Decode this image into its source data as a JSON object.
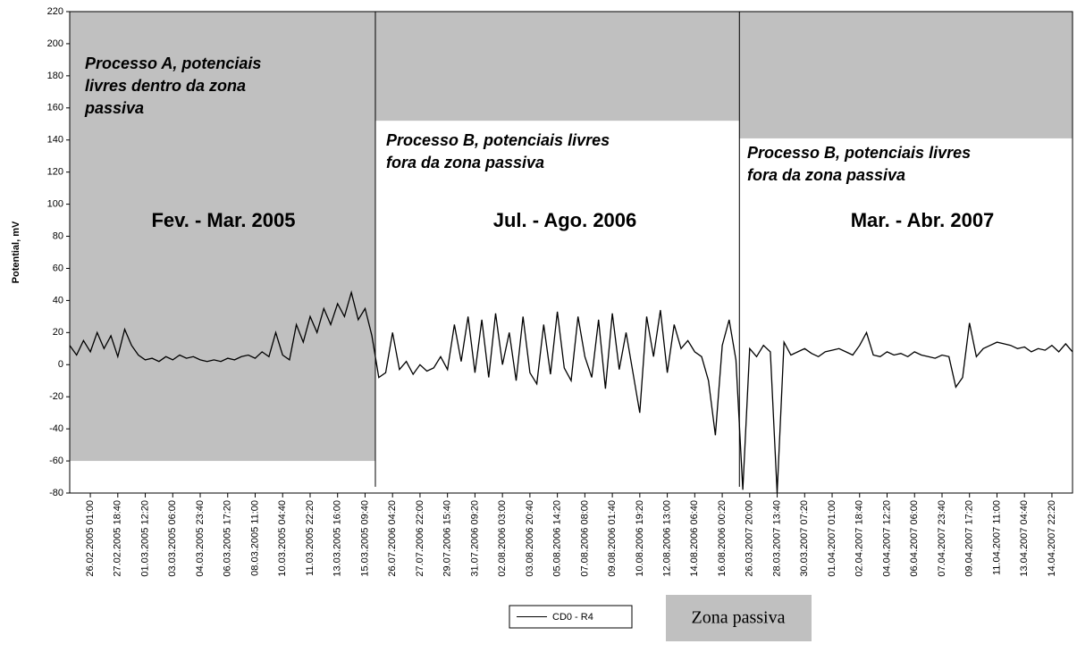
{
  "chart_data": {
    "type": "line",
    "y_label": "Potential, mV",
    "ylim": [
      -80,
      220
    ],
    "yticks": [
      -80,
      -60,
      -40,
      -20,
      0,
      20,
      40,
      60,
      80,
      100,
      120,
      140,
      160,
      180,
      200,
      220
    ],
    "zone_legend": "Zona passiva",
    "zone_color": "#c0c0c0",
    "sections": [
      {
        "title": "Fev. - Mar. 2005",
        "note": [
          "Processo A, potenciais",
          "livres dentro da zona",
          "passiva"
        ],
        "zone": [
          -60,
          220
        ]
      },
      {
        "title": "Jul. - Ago. 2006",
        "note": [
          "Processo B, potenciais livres",
          "fora da zona passiva"
        ],
        "zone": [
          152,
          220
        ]
      },
      {
        "title": "Mar. - Abr. 2007",
        "note": [
          "Processo B, potenciais livres",
          "fora da zona passiva"
        ],
        "zone": [
          141,
          220
        ]
      }
    ],
    "categories": [
      null,
      null,
      null,
      "26.02.2005 01:00",
      null,
      null,
      null,
      "27.02.2005 18:40",
      null,
      null,
      null,
      "01.03.2005 12:20",
      null,
      null,
      null,
      "03.03.2005 06:00",
      null,
      null,
      null,
      "04.03.2005 23:40",
      null,
      null,
      null,
      "06.03.2005 17:20",
      null,
      null,
      null,
      "08.03.2005 11:00",
      null,
      null,
      null,
      "10.03.2005 04:40",
      null,
      null,
      null,
      "11.03.2005 22:20",
      null,
      null,
      null,
      "13.03.2005 16:00",
      null,
      null,
      null,
      "15.03.2005 09:40",
      null,
      null,
      null,
      "26.07.2006 04:20",
      null,
      null,
      null,
      "27.07.2006 22:00",
      null,
      null,
      null,
      "29.07.2006 15:40",
      null,
      null,
      null,
      "31.07.2006 09:20",
      null,
      null,
      null,
      "02.08.2006 03:00",
      null,
      null,
      null,
      "03.08.2006 20:40",
      null,
      null,
      null,
      "05.08.2006 14:20",
      null,
      null,
      null,
      "07.08.2006 08:00",
      null,
      null,
      null,
      "09.08.2006 01:40",
      null,
      null,
      null,
      "10.08.2006 19:20",
      null,
      null,
      null,
      "12.08.2006 13:00",
      null,
      null,
      null,
      "14.08.2006 06:40",
      null,
      null,
      null,
      "16.08.2006 00:20",
      null,
      null,
      null,
      "26.03.2007 20:00",
      null,
      null,
      null,
      "28.03.2007 13:40",
      null,
      null,
      null,
      "30.03.2007 07:20",
      null,
      null,
      null,
      "01.04.2007 01:00",
      null,
      null,
      null,
      "02.04.2007 18:40",
      null,
      null,
      null,
      "04.04.2007 12:20",
      null,
      null,
      null,
      "06.04.2007 06:00",
      null,
      null,
      null,
      "07.04.2007 23:40",
      null,
      null,
      null,
      "09.04.2007 17:20",
      null,
      null,
      null,
      "11.04.2007 11:00",
      null,
      null,
      null,
      "13.04.2007 04:40",
      null,
      null,
      null,
      "14.04.2007 22:20",
      null,
      null,
      null
    ],
    "series": [
      {
        "name": "CD0 - R4",
        "color": "#000000",
        "values": [
          12,
          6,
          15,
          8,
          20,
          10,
          18,
          5,
          22,
          12,
          6,
          3,
          4,
          2,
          5,
          3,
          6,
          4,
          5,
          3,
          2,
          3,
          2,
          4,
          3,
          5,
          6,
          4,
          8,
          5,
          20,
          6,
          3,
          25,
          14,
          30,
          20,
          35,
          25,
          38,
          30,
          45,
          28,
          35,
          18,
          -8,
          -5,
          20,
          -3,
          2,
          -6,
          0,
          -4,
          -2,
          5,
          -3,
          25,
          2,
          30,
          -5,
          28,
          -8,
          32,
          0,
          20,
          -10,
          30,
          -5,
          -12,
          25,
          -6,
          33,
          -2,
          -10,
          30,
          5,
          -8,
          28,
          -15,
          32,
          -3,
          20,
          -5,
          -30,
          30,
          5,
          34,
          -5,
          25,
          10,
          15,
          8,
          5,
          -10,
          -44,
          12,
          28,
          3,
          -78,
          10,
          5,
          12,
          8,
          -80,
          14,
          6,
          8,
          10,
          7,
          5,
          8,
          9,
          10,
          8,
          6,
          12,
          20,
          6,
          5,
          8,
          6,
          7,
          5,
          8,
          6,
          5,
          4,
          6,
          5,
          -14,
          -8,
          26,
          5,
          10,
          12,
          14,
          13,
          12,
          10,
          11,
          8,
          10,
          9,
          12,
          8,
          13,
          8
        ]
      }
    ]
  }
}
